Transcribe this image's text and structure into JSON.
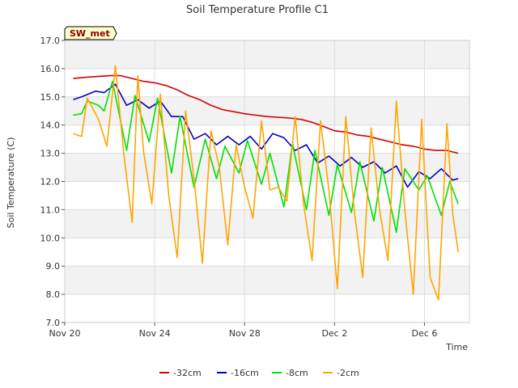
{
  "chart_data": {
    "type": "line",
    "title": "Soil Temperature Profile C1",
    "xlabel": "Time",
    "ylabel": "Soil Temperature (C)",
    "badge": "SW_met",
    "xlim": [
      "2023-11-20",
      "2023-12-08"
    ],
    "ylim": [
      7.0,
      17.0
    ],
    "x_ticks": [
      {
        "date": "2023-11-20",
        "label": "Nov 20"
      },
      {
        "date": "2023-11-24",
        "label": "Nov 24"
      },
      {
        "date": "2023-11-28",
        "label": "Nov 28"
      },
      {
        "date": "2023-12-02",
        "label": "Dec 2"
      },
      {
        "date": "2023-12-06",
        "label": "Dec 6"
      }
    ],
    "y_ticks": [
      "7.0",
      "8.0",
      "9.0",
      "10.0",
      "11.0",
      "12.0",
      "13.0",
      "14.0",
      "15.0",
      "16.0",
      "17.0"
    ],
    "grid": true,
    "legend_position": "bottom",
    "series": [
      {
        "name": "-32cm",
        "color": "#d40000",
        "x": [
          "2023-11-20 09:00",
          "2023-11-21 00:00",
          "2023-11-22 00:00",
          "2023-11-22 12:00",
          "2023-11-23 00:00",
          "2023-11-23 12:00",
          "2023-11-24 00:00",
          "2023-11-24 12:00",
          "2023-11-25 00:00",
          "2023-11-25 12:00",
          "2023-11-26 00:00",
          "2023-11-26 12:00",
          "2023-11-27 00:00",
          "2023-11-28 00:00",
          "2023-11-28 12:00",
          "2023-11-29 00:00",
          "2023-11-30 00:00",
          "2023-11-30 12:00",
          "2023-12-01 00:00",
          "2023-12-01 12:00",
          "2023-12-02 00:00",
          "2023-12-02 12:00",
          "2023-12-03 00:00",
          "2023-12-03 12:00",
          "2023-12-04 00:00",
          "2023-12-04 12:00",
          "2023-12-05 00:00",
          "2023-12-05 12:00",
          "2023-12-06 00:00",
          "2023-12-06 12:00",
          "2023-12-07 00:00",
          "2023-12-07 12:00"
        ],
        "y": [
          15.65,
          15.7,
          15.75,
          15.75,
          15.65,
          15.55,
          15.5,
          15.4,
          15.25,
          15.05,
          14.9,
          14.7,
          14.55,
          14.4,
          14.35,
          14.3,
          14.25,
          14.2,
          14.1,
          13.95,
          13.8,
          13.75,
          13.65,
          13.6,
          13.5,
          13.4,
          13.3,
          13.25,
          13.15,
          13.1,
          13.1,
          13.0
        ]
      },
      {
        "name": "-16cm",
        "color": "#0000c8",
        "x": [
          "2023-11-20 09:00",
          "2023-11-20 18:00",
          "2023-11-21 09:00",
          "2023-11-21 18:00",
          "2023-11-22 06:00",
          "2023-11-22 18:00",
          "2023-11-23 06:00",
          "2023-11-23 18:00",
          "2023-11-24 06:00",
          "2023-11-24 18:00",
          "2023-11-25 06:00",
          "2023-11-25 18:00",
          "2023-11-26 06:00",
          "2023-11-26 18:00",
          "2023-11-27 06:00",
          "2023-11-27 18:00",
          "2023-11-28 06:00",
          "2023-11-28 18:00",
          "2023-11-29 06:00",
          "2023-11-29 18:00",
          "2023-11-30 06:00",
          "2023-11-30 18:00",
          "2023-12-01 06:00",
          "2023-12-01 18:00",
          "2023-12-02 06:00",
          "2023-12-02 18:00",
          "2023-12-03 06:00",
          "2023-12-03 18:00",
          "2023-12-04 06:00",
          "2023-12-04 18:00",
          "2023-12-05 06:00",
          "2023-12-05 18:00",
          "2023-12-06 06:00",
          "2023-12-06 18:00",
          "2023-12-07 06:00",
          "2023-12-07 12:00"
        ],
        "y": [
          14.9,
          15.0,
          15.2,
          15.15,
          15.45,
          14.7,
          14.9,
          14.6,
          14.85,
          14.3,
          14.3,
          13.5,
          13.7,
          13.3,
          13.6,
          13.3,
          13.6,
          13.15,
          13.7,
          13.55,
          13.1,
          13.3,
          12.65,
          12.9,
          12.55,
          12.85,
          12.5,
          12.7,
          12.3,
          12.55,
          11.8,
          12.35,
          12.1,
          12.45,
          12.05,
          12.1
        ]
      },
      {
        "name": "-8cm",
        "color": "#00e000",
        "x": [
          "2023-11-20 09:00",
          "2023-11-20 18:00",
          "2023-11-21 00:00",
          "2023-11-21 12:00",
          "2023-11-21 18:00",
          "2023-11-22 03:00",
          "2023-11-22 18:00",
          "2023-11-23 03:00",
          "2023-11-23 18:00",
          "2023-11-24 03:00",
          "2023-11-24 18:00",
          "2023-11-25 03:00",
          "2023-11-25 18:00",
          "2023-11-26 06:00",
          "2023-11-26 18:00",
          "2023-11-27 03:00",
          "2023-11-27 18:00",
          "2023-11-28 03:00",
          "2023-11-28 18:00",
          "2023-11-29 03:00",
          "2023-11-29 18:00",
          "2023-11-30 03:00",
          "2023-11-30 18:00",
          "2023-12-01 03:00",
          "2023-12-01 18:00",
          "2023-12-02 03:00",
          "2023-12-02 18:00",
          "2023-12-03 03:00",
          "2023-12-03 18:00",
          "2023-12-04 03:00",
          "2023-12-04 18:00",
          "2023-12-05 03:00",
          "2023-12-05 18:00",
          "2023-12-06 03:00",
          "2023-12-06 18:00",
          "2023-12-07 03:00",
          "2023-12-07 12:00"
        ],
        "y": [
          14.35,
          14.4,
          14.85,
          14.7,
          14.5,
          15.55,
          13.1,
          15.05,
          13.4,
          14.95,
          12.3,
          14.3,
          11.8,
          13.5,
          12.1,
          13.25,
          12.3,
          13.45,
          11.9,
          13.0,
          11.1,
          13.35,
          11.0,
          13.1,
          10.8,
          12.6,
          10.9,
          12.7,
          10.6,
          12.5,
          10.2,
          12.45,
          11.7,
          12.2,
          10.8,
          12.0,
          11.2
        ]
      },
      {
        "name": "-2cm",
        "color": "#ffa500",
        "x": [
          "2023-11-20 09:00",
          "2023-11-20 18:00",
          "2023-11-21 00:00",
          "2023-11-21 12:00",
          "2023-11-21 21:00",
          "2023-11-22 06:00",
          "2023-11-22 15:00",
          "2023-11-23 00:00",
          "2023-11-23 06:00",
          "2023-11-23 12:00",
          "2023-11-23 21:00",
          "2023-11-24 06:00",
          "2023-11-24 15:00",
          "2023-11-25 00:00",
          "2023-11-25 09:00",
          "2023-11-25 18:00",
          "2023-11-26 03:00",
          "2023-11-26 12:00",
          "2023-11-26 21:00",
          "2023-11-27 06:00",
          "2023-11-27 15:00",
          "2023-11-28 00:00",
          "2023-11-28 09:00",
          "2023-11-28 18:00",
          "2023-11-29 03:00",
          "2023-11-29 12:00",
          "2023-11-29 21:00",
          "2023-11-30 06:00",
          "2023-11-30 15:00",
          "2023-12-01 00:00",
          "2023-12-01 09:00",
          "2023-12-01 18:00",
          "2023-12-02 03:00",
          "2023-12-02 12:00",
          "2023-12-02 21:00",
          "2023-12-03 06:00",
          "2023-12-03 15:00",
          "2023-12-04 00:00",
          "2023-12-04 09:00",
          "2023-12-04 18:00",
          "2023-12-05 03:00",
          "2023-12-05 12:00",
          "2023-12-05 21:00",
          "2023-12-06 06:00",
          "2023-12-06 15:00",
          "2023-12-07 00:00",
          "2023-12-07 06:00",
          "2023-12-07 12:00"
        ],
        "y": [
          13.7,
          13.6,
          14.95,
          14.2,
          13.25,
          16.1,
          13.0,
          10.55,
          15.75,
          13.1,
          11.2,
          15.1,
          11.5,
          9.3,
          14.5,
          12.1,
          9.1,
          13.8,
          12.5,
          9.75,
          13.3,
          11.8,
          10.7,
          14.15,
          11.7,
          11.8,
          11.3,
          14.3,
          11.2,
          9.2,
          14.15,
          11.7,
          8.2,
          14.3,
          11.0,
          8.6,
          13.9,
          11.0,
          9.2,
          14.85,
          11.0,
          8.0,
          14.2,
          8.6,
          7.8,
          14.05,
          10.9,
          9.5
        ]
      }
    ]
  }
}
